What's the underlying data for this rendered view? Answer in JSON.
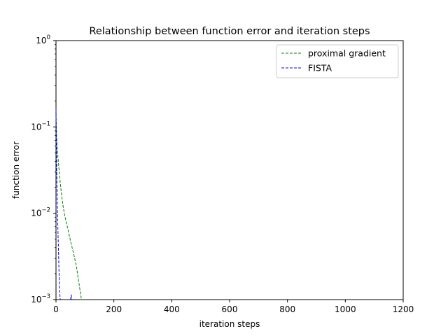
{
  "chart_data": {
    "type": "line",
    "title": "Relationship between function error and iteration steps",
    "xlabel": "iteration steps",
    "ylabel": "function error",
    "xlim": [
      0,
      1200
    ],
    "ylim": [
      0.001,
      1
    ],
    "yscale": "log",
    "grid": false,
    "legend_position": "top-right",
    "x_ticks": [
      "0",
      "200",
      "400",
      "600",
      "800",
      "1000",
      "1200"
    ],
    "x_tick_values": [
      0,
      200,
      400,
      600,
      800,
      1000,
      1200
    ],
    "y_ticks": [
      {
        "base": "10",
        "exp": "−3",
        "value": 0.001
      },
      {
        "base": "10",
        "exp": "−2",
        "value": 0.01
      },
      {
        "base": "10",
        "exp": "−1",
        "value": 0.1
      },
      {
        "base": "10",
        "exp": "0",
        "value": 1
      }
    ],
    "series": [
      {
        "name": "proximal gradient",
        "color": "#008000",
        "style": "dashed",
        "x": [
          0,
          2,
          4,
          6,
          8,
          10,
          15,
          20,
          25,
          30,
          40,
          50,
          60,
          70,
          80,
          88
        ],
        "y": [
          0.13,
          0.08,
          0.058,
          0.048,
          0.04,
          0.034,
          0.022,
          0.0155,
          0.0118,
          0.0095,
          0.0068,
          0.0048,
          0.0035,
          0.0025,
          0.0015,
          0.001
        ]
      },
      {
        "name": "FISTA",
        "color": "#0000ff",
        "style": "dashed",
        "x": [
          0,
          1,
          2,
          3,
          4,
          5,
          6,
          7,
          8,
          9,
          10,
          11,
          12,
          13,
          14,
          15
        ],
        "y": [
          0.16,
          0.09,
          0.045,
          0.025,
          0.016,
          0.011,
          0.0078,
          0.0058,
          0.0044,
          0.0033,
          0.0024,
          0.0018,
          0.0014,
          0.0012,
          0.00105,
          0.001
        ]
      },
      {
        "name": "",
        "color": "#0000ff",
        "style": "dashed",
        "x": [
          50,
          51,
          52,
          53,
          54,
          55
        ],
        "y": [
          0.001,
          0.00104,
          0.00112,
          0.00113,
          0.00108,
          0.001
        ]
      }
    ]
  }
}
